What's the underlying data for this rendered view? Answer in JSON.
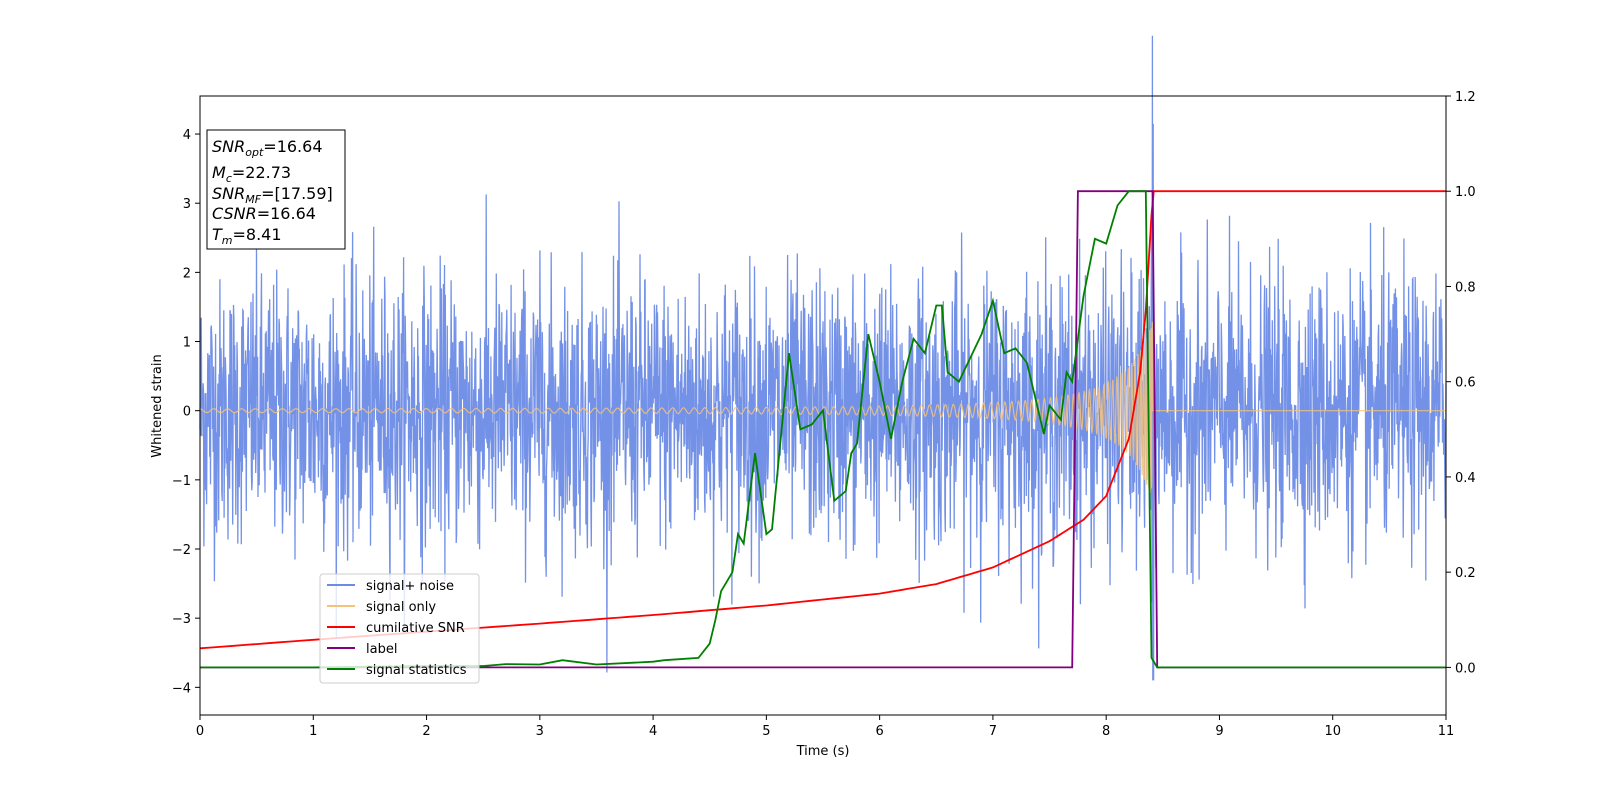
{
  "chart_data": {
    "type": "line",
    "xlabel": "Time (s)",
    "ylabel": "Whitened strain",
    "xlim": [
      0,
      11
    ],
    "ylim_left": [
      -4.4,
      4.55
    ],
    "ylim_right": [
      -0.1,
      1.2
    ],
    "x_ticks": [
      0,
      1,
      2,
      3,
      4,
      5,
      6,
      7,
      8,
      9,
      10,
      11
    ],
    "y_ticks_left": [
      -4,
      -3,
      -2,
      -1,
      0,
      1,
      2,
      3,
      4
    ],
    "y_ticks_right": [
      "0.0",
      "0.2",
      "0.4",
      "0.6",
      "0.8",
      "1.0",
      "1.2"
    ],
    "legend_position": "lower-left",
    "grid": false,
    "colors": {
      "signal_noise": "#6b8be6",
      "signal_only": "#f5c27a",
      "cumulative_snr": "#ff0000",
      "label": "#800080",
      "signal_statistics": "#008000"
    },
    "series": [
      {
        "name": "signal+ noise",
        "axis": "left",
        "description_values": "noise with amplitude about ±2.3 (peaks to ~±3.5), spike near t=8.41 reaching ~4.2"
      },
      {
        "name": "signal only",
        "axis": "left",
        "chirp_amplitude_end": 1.5,
        "merger_time": 8.41
      },
      {
        "name": "cumilative SNR",
        "axis": "right",
        "x": [
          0,
          1,
          2,
          3,
          4,
          5,
          6,
          6.5,
          7,
          7.5,
          7.8,
          8.0,
          8.2,
          8.3,
          8.35,
          8.4,
          8.42,
          11
        ],
        "values": [
          0.04,
          0.058,
          0.075,
          0.092,
          0.11,
          0.13,
          0.155,
          0.175,
          0.21,
          0.265,
          0.31,
          0.36,
          0.48,
          0.62,
          0.75,
          0.95,
          1.0,
          1.0
        ]
      },
      {
        "name": "label",
        "axis": "right",
        "x": [
          0,
          7.7,
          7.75,
          8.41,
          8.45,
          11
        ],
        "values": [
          0,
          0,
          1,
          1,
          0,
          0
        ]
      },
      {
        "name": "signal statistics",
        "axis": "right",
        "x": [
          0,
          1,
          2,
          2.5,
          2.7,
          3.0,
          3.2,
          3.5,
          4.0,
          4.1,
          4.4,
          4.5,
          4.55,
          4.6,
          4.7,
          4.75,
          4.8,
          4.9,
          5.0,
          5.05,
          5.2,
          5.3,
          5.4,
          5.5,
          5.6,
          5.7,
          5.75,
          5.8,
          5.9,
          6.0,
          6.1,
          6.2,
          6.3,
          6.4,
          6.5,
          6.55,
          6.6,
          6.7,
          6.8,
          6.9,
          7.0,
          7.1,
          7.2,
          7.3,
          7.45,
          7.5,
          7.6,
          7.65,
          7.7,
          7.8,
          7.9,
          8.0,
          8.1,
          8.2,
          8.25,
          8.35,
          8.4,
          8.45,
          8.5,
          11
        ],
        "values": [
          0.0,
          0.0,
          0.003,
          0.003,
          0.007,
          0.006,
          0.015,
          0.006,
          0.012,
          0.015,
          0.02,
          0.05,
          0.1,
          0.16,
          0.2,
          0.28,
          0.26,
          0.45,
          0.28,
          0.29,
          0.66,
          0.5,
          0.51,
          0.54,
          0.35,
          0.37,
          0.45,
          0.47,
          0.7,
          0.6,
          0.48,
          0.6,
          0.69,
          0.66,
          0.76,
          0.76,
          0.62,
          0.6,
          0.65,
          0.7,
          0.77,
          0.66,
          0.67,
          0.64,
          0.49,
          0.55,
          0.52,
          0.62,
          0.6,
          0.78,
          0.9,
          0.89,
          0.97,
          1.0,
          1.0,
          1.0,
          0.02,
          0.0,
          0.0,
          0.0
        ]
      }
    ],
    "annotation": {
      "snr_opt": "=16.64",
      "mc": "=22.73",
      "snr_mf": "=[17.59]",
      "csnr": "=16.64",
      "tm": "=8.41"
    }
  }
}
